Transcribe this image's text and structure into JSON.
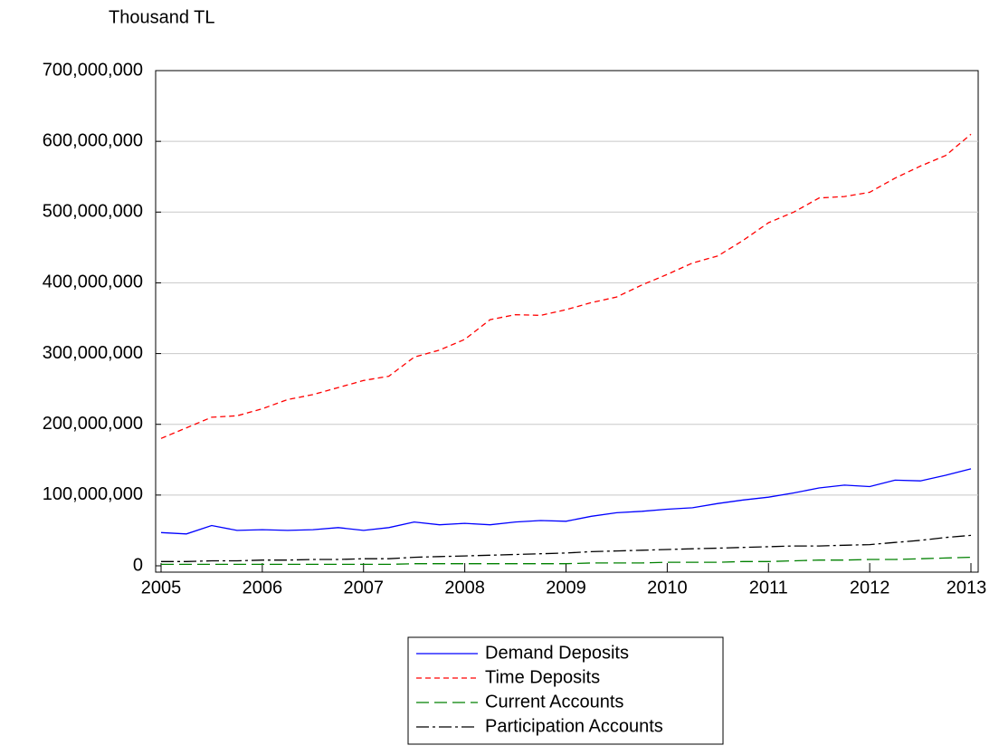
{
  "chart_data": {
    "type": "line",
    "ylabel": "Thousand TL",
    "x": [
      2005,
      2005.25,
      2005.5,
      2005.75,
      2006,
      2006.25,
      2006.5,
      2006.75,
      2007,
      2007.25,
      2007.5,
      2007.75,
      2008,
      2008.25,
      2008.5,
      2008.75,
      2009,
      2009.25,
      2009.5,
      2009.75,
      2010,
      2010.25,
      2010.5,
      2010.75,
      2011,
      2011.25,
      2011.5,
      2011.75,
      2012,
      2012.25,
      2012.5,
      2012.75,
      2013
    ],
    "xlim": [
      2005,
      2013
    ],
    "xticks": [
      2005,
      2006,
      2007,
      2008,
      2009,
      2010,
      2011,
      2012,
      2013
    ],
    "ylim": [
      0,
      700000000
    ],
    "yticks": [
      0,
      {
        "value": 100000000,
        "label": "100,000,000"
      },
      {
        "value": 200000000,
        "label": "200,000,000"
      },
      {
        "value": 300000000,
        "label": "300,000,000"
      },
      {
        "value": 400000000,
        "label": "400,000,000"
      },
      {
        "value": 500000000,
        "label": "500,000,000"
      },
      {
        "value": 600000000,
        "label": "600,000,000"
      },
      {
        "value": 700000000,
        "label": "700,000,000"
      }
    ],
    "grid": true,
    "legend": "bottom",
    "series": [
      {
        "name": "Demand Deposits",
        "color": "#0000ff",
        "values": [
          47000000,
          45000000,
          57000000,
          50000000,
          51000000,
          50000000,
          51000000,
          54000000,
          50000000,
          54000000,
          62000000,
          58000000,
          60000000,
          58000000,
          62000000,
          64000000,
          63000000,
          70000000,
          75000000,
          77000000,
          80000000,
          82000000,
          88000000,
          93000000,
          97000000,
          103000000,
          110000000,
          114000000,
          112000000,
          121000000,
          120000000,
          128000000,
          137000000
        ]
      },
      {
        "name": "Time Deposits",
        "color": "#ff0000",
        "values": [
          180000000,
          195000000,
          210000000,
          212000000,
          222000000,
          235000000,
          242000000,
          252000000,
          262000000,
          268000000,
          295000000,
          305000000,
          320000000,
          348000000,
          355000000,
          354000000,
          362000000,
          372000000,
          380000000,
          397000000,
          412000000,
          428000000,
          438000000,
          460000000,
          485000000,
          500000000,
          520000000,
          522000000,
          528000000,
          548000000,
          565000000,
          580000000,
          610000000
        ]
      },
      {
        "name": "Current Accounts",
        "color": "#008000",
        "values": [
          2000000,
          2000000,
          2000000,
          2000000,
          2000000,
          2000000,
          2000000,
          2000000,
          2000000,
          2000000,
          3000000,
          3000000,
          3000000,
          3000000,
          3000000,
          3000000,
          3000000,
          4000000,
          4000000,
          4000000,
          5000000,
          5000000,
          5000000,
          6000000,
          6000000,
          7000000,
          8000000,
          8000000,
          9000000,
          9000000,
          10000000,
          11000000,
          12000000
        ]
      },
      {
        "name": "Participation Accounts",
        "color": "#000000",
        "values": [
          6000000,
          6000000,
          7000000,
          7000000,
          8000000,
          8000000,
          9000000,
          9000000,
          10000000,
          10000000,
          12000000,
          13000000,
          14000000,
          15000000,
          16000000,
          17000000,
          18000000,
          20000000,
          21000000,
          22000000,
          23000000,
          24000000,
          25000000,
          26000000,
          27000000,
          28000000,
          28000000,
          29000000,
          30000000,
          33000000,
          36000000,
          40000000,
          43000000
        ]
      }
    ]
  }
}
